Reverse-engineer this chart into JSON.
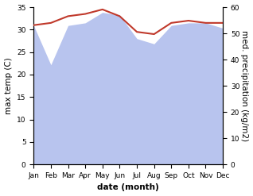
{
  "months": [
    "Jan",
    "Feb",
    "Mar",
    "Apr",
    "May",
    "Jun",
    "Jul",
    "Aug",
    "Sep",
    "Oct",
    "Nov",
    "Dec"
  ],
  "temperature": [
    31.0,
    31.5,
    33.0,
    33.5,
    34.5,
    33.0,
    29.5,
    29.0,
    31.5,
    32.0,
    31.5,
    31.5
  ],
  "precipitation": [
    53.0,
    38.0,
    53.0,
    54.0,
    58.0,
    57.0,
    48.0,
    46.0,
    53.0,
    54.0,
    54.0,
    52.0
  ],
  "temp_color": "#c0392b",
  "precip_color": "#b8c4ee",
  "temp_ylim": [
    0,
    35
  ],
  "precip_ylim": [
    0,
    60
  ],
  "temp_yticks": [
    0,
    5,
    10,
    15,
    20,
    25,
    30,
    35
  ],
  "precip_yticks": [
    0,
    10,
    20,
    30,
    40,
    50,
    60
  ],
  "xlabel": "date (month)",
  "ylabel_left": "max temp (C)",
  "ylabel_right": "med. precipitation (kg/m2)",
  "bg_color": "#ffffff",
  "label_fontsize": 7.5,
  "tick_fontsize": 6.5
}
